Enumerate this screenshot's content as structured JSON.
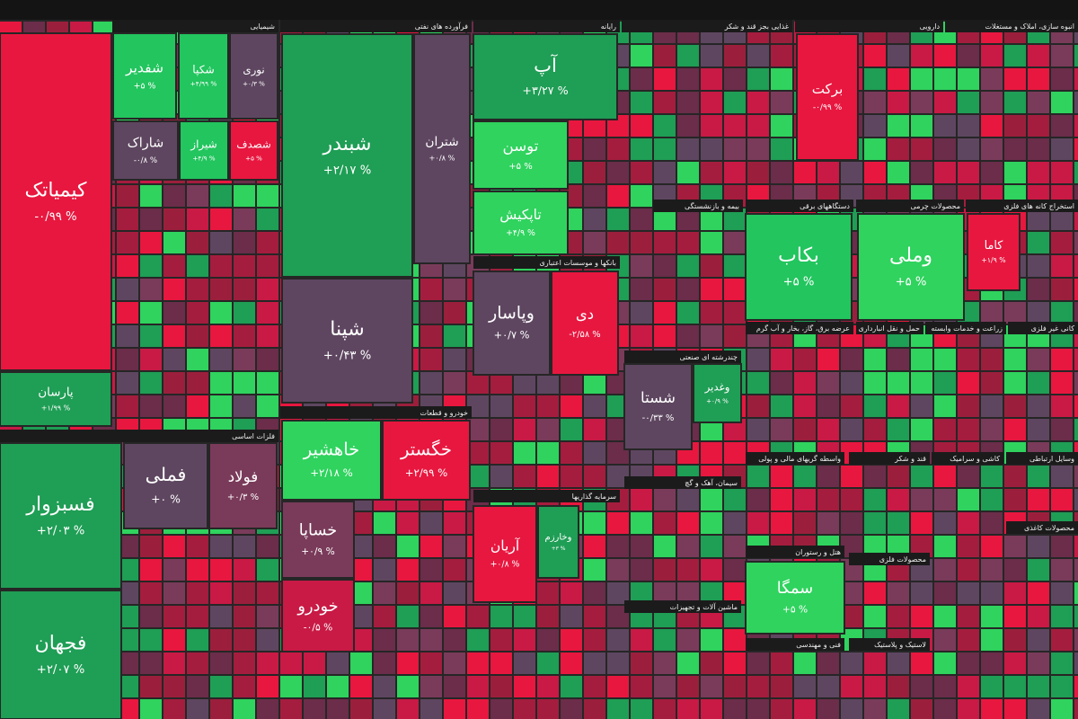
{
  "sectors": [
    {
      "name": "شیمیایی",
      "tiles": [
        {
          "symbol": "کیمیاتک",
          "change": "-۰/۹۹ %",
          "color": "#e8173f"
        },
        {
          "symbol": "پارسان",
          "change": "+۱/۹۹ %",
          "color": "#1f9e55"
        },
        {
          "symbol": "شفدیر",
          "change": "+۵ %",
          "color": "#22c55e"
        },
        {
          "symbol": "شکپا",
          "change": "+۴/۹۹ %",
          "color": "#22c55e"
        },
        {
          "symbol": "نوری",
          "change": "+۰/۳ %",
          "color": "#5e4660"
        },
        {
          "symbol": "شاراک",
          "change": "-۰/۸ %",
          "color": "#5e4660"
        },
        {
          "symbol": "شیراز",
          "change": "+۴/۹ %",
          "color": "#22c55e"
        },
        {
          "symbol": "شصدف",
          "change": "+۵ %",
          "color": "#e8173f"
        }
      ]
    },
    {
      "name": "فرآورده های نفتی",
      "tiles": [
        {
          "symbol": "شبندر",
          "change": "+۲/۱۷ %",
          "color": "#1f9e55"
        },
        {
          "symbol": "شپنا",
          "change": "+۰/۴۳ %",
          "color": "#5e4660"
        },
        {
          "symbol": "شتران",
          "change": "+۰/۸ %",
          "color": "#5e4660"
        }
      ]
    },
    {
      "name": "رایانه",
      "tiles": [
        {
          "symbol": "آپ",
          "change": "+۳/۲۷ %",
          "color": "#1f9e55"
        },
        {
          "symbol": "توسن",
          "change": "+۵ %",
          "color": "#2fd35e"
        },
        {
          "symbol": "تاپکیش",
          "change": "+۴/۹ %",
          "color": "#2fd35e"
        }
      ]
    },
    {
      "name": "غذایی بجز قند و شکر",
      "tiles": []
    },
    {
      "name": "دارویی",
      "tiles": [
        {
          "symbol": "برکت",
          "change": "-۰/۹۹ %",
          "color": "#e8173f"
        }
      ]
    },
    {
      "name": "انبوه سازی، املاک و مستغلات",
      "tiles": []
    },
    {
      "name": "فلزات اساسی",
      "tiles": [
        {
          "symbol": "فسبزوار",
          "change": "+۲/۰۳ %",
          "color": "#1f9e55"
        },
        {
          "symbol": "فجهان",
          "change": "+۲/۰۷ %",
          "color": "#1f9e55"
        },
        {
          "symbol": "فملی",
          "change": "+۰ %",
          "color": "#5e4660"
        },
        {
          "symbol": "فولاد",
          "change": "+۰/۳ %",
          "color": "#7a3b5a"
        }
      ]
    },
    {
      "name": "خودرو و قطعات",
      "tiles": [
        {
          "symbol": "خاهشیر",
          "change": "+۲/۱۸ %",
          "color": "#2fd35e"
        },
        {
          "symbol": "خگستر",
          "change": "+۲/۹۹ %",
          "color": "#e8173f"
        },
        {
          "symbol": "خساپا",
          "change": "+۰/۹ %",
          "color": "#7a3b5a"
        },
        {
          "symbol": "خودرو",
          "change": "-۰/۵ %",
          "color": "#c81a45"
        }
      ]
    },
    {
      "name": "بانکها و موسسات اعتباری",
      "tiles": [
        {
          "symbol": "وپاسار",
          "change": "+۰/۷ %",
          "color": "#5e4660"
        },
        {
          "symbol": "دی",
          "change": "-۲/۵۸ %",
          "color": "#e8173f"
        }
      ]
    },
    {
      "name": "بیمه و بازنشستگی",
      "tiles": []
    },
    {
      "name": "دستگاههای برقی",
      "tiles": [
        {
          "symbol": "بکاب",
          "change": "+۵ %",
          "color": "#22c55e"
        }
      ]
    },
    {
      "name": "محصولات چرمی",
      "tiles": [
        {
          "symbol": "وملی",
          "change": "+۵ %",
          "color": "#2fd35e"
        }
      ]
    },
    {
      "name": "استخراج کانه های فلزی",
      "tiles": [
        {
          "symbol": "کاما",
          "change": "+۱/۹ %",
          "color": "#e8173f"
        }
      ]
    },
    {
      "name": "چندرشته ای صنعتی",
      "tiles": [
        {
          "symbol": "شستا",
          "change": "-۰/۳۳ %",
          "color": "#5e4660"
        },
        {
          "symbol": "وغدیر",
          "change": "+۰/۹ %",
          "color": "#1f9e55"
        }
      ]
    },
    {
      "name": "سرمایه گذاریها",
      "tiles": [
        {
          "symbol": "آریان",
          "change": "+۰/۸ %",
          "color": "#e8173f"
        },
        {
          "symbol": "وخارزم",
          "change": "+۳ %",
          "color": "#1f9e55"
        }
      ]
    },
    {
      "name": "سیمان، آهک و گچ",
      "tiles": []
    },
    {
      "name": "هتل و رستوران",
      "tiles": [
        {
          "symbol": "سمگا",
          "change": "+۵ %",
          "color": "#2fd35e"
        }
      ]
    },
    {
      "name": "ماشین آلات و تجهیزات",
      "tiles": []
    },
    {
      "name": "قند و شکر",
      "tiles": []
    },
    {
      "name": "کاشی و سرامیک",
      "tiles": []
    },
    {
      "name": "وسایل ارتباطی",
      "tiles": []
    },
    {
      "name": "عرضه برق، گاز، بخار و آب گرم",
      "tiles": []
    },
    {
      "name": "حمل و نقل انبارداری",
      "tiles": []
    },
    {
      "name": "زراعت و خدمات وابسته",
      "tiles": []
    },
    {
      "name": "کانی غیر فلزی",
      "tiles": []
    },
    {
      "name": "واسطه گریهای مالی و پولی",
      "tiles": []
    },
    {
      "name": "محصولات فلزی",
      "tiles": []
    },
    {
      "name": "فنی و مهندسی",
      "tiles": []
    },
    {
      "name": "لاستیک و پلاستیک",
      "tiles": []
    },
    {
      "name": "محصولات کاغذی",
      "tiles": []
    }
  ]
}
